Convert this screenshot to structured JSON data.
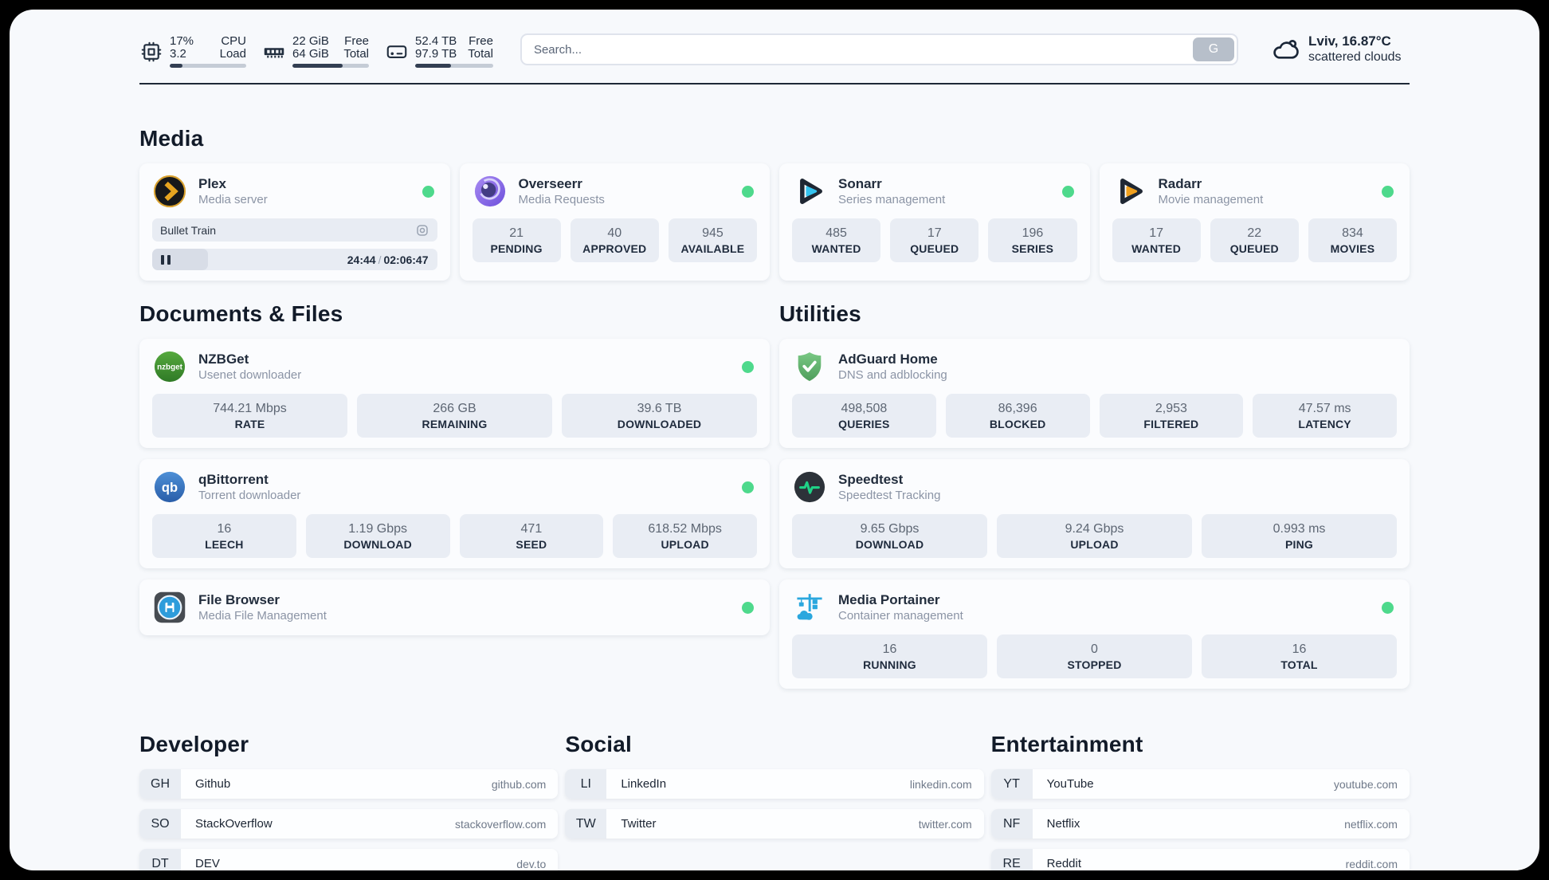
{
  "header": {
    "cpu": {
      "value1": "17%",
      "label1": "CPU",
      "value2": "3.2",
      "label2": "Load",
      "progress_pct": 17
    },
    "ram": {
      "value1": "22 GiB",
      "label1": "Free",
      "value2": "64 GiB",
      "label2": "Total",
      "progress_pct": 66
    },
    "disk": {
      "value1": "52.4 TB",
      "label1": "Free",
      "value2": "97.9 TB",
      "label2": "Total",
      "progress_pct": 46
    },
    "search": {
      "placeholder": "Search...",
      "button_label": "G"
    },
    "weather": {
      "location_temp": "Lviv, 16.87°C",
      "condition": "scattered clouds"
    }
  },
  "media": {
    "title": "Media",
    "plex": {
      "name": "Plex",
      "subtitle": "Media server",
      "online": true,
      "now_playing": "Bullet Train",
      "elapsed": "24:44",
      "separator": "/",
      "duration": "02:06:47",
      "progress_pct": 19.5
    },
    "overseerr": {
      "name": "Overseerr",
      "subtitle": "Media Requests",
      "online": true,
      "stats": [
        {
          "value": "21",
          "label": "PENDING"
        },
        {
          "value": "40",
          "label": "APPROVED"
        },
        {
          "value": "945",
          "label": "AVAILABLE"
        }
      ]
    },
    "sonarr": {
      "name": "Sonarr",
      "subtitle": "Series management",
      "online": true,
      "stats": [
        {
          "value": "485",
          "label": "WANTED"
        },
        {
          "value": "17",
          "label": "QUEUED"
        },
        {
          "value": "196",
          "label": "SERIES"
        }
      ]
    },
    "radarr": {
      "name": "Radarr",
      "subtitle": "Movie management",
      "online": true,
      "stats": [
        {
          "value": "17",
          "label": "WANTED"
        },
        {
          "value": "22",
          "label": "QUEUED"
        },
        {
          "value": "834",
          "label": "MOVIES"
        }
      ]
    }
  },
  "documents": {
    "title": "Documents & Files",
    "nzbget": {
      "name": "NZBGet",
      "subtitle": "Usenet downloader",
      "online": true,
      "stats": [
        {
          "value": "744.21 Mbps",
          "label": "RATE"
        },
        {
          "value": "266 GB",
          "label": "REMAINING"
        },
        {
          "value": "39.6 TB",
          "label": "DOWNLOADED"
        }
      ]
    },
    "qbittorrent": {
      "name": "qBittorrent",
      "subtitle": "Torrent downloader",
      "online": true,
      "stats": [
        {
          "value": "16",
          "label": "LEECH"
        },
        {
          "value": "1.19 Gbps",
          "label": "DOWNLOAD"
        },
        {
          "value": "471",
          "label": "SEED"
        },
        {
          "value": "618.52 Mbps",
          "label": "UPLOAD"
        }
      ]
    },
    "filebrowser": {
      "name": "File Browser",
      "subtitle": "Media File Management",
      "online": true
    }
  },
  "utilities": {
    "title": "Utilities",
    "adguard": {
      "name": "AdGuard Home",
      "subtitle": "DNS and adblocking",
      "stats": [
        {
          "value": "498,508",
          "label": "QUERIES"
        },
        {
          "value": "86,396",
          "label": "BLOCKED"
        },
        {
          "value": "2,953",
          "label": "FILTERED"
        },
        {
          "value": "47.57 ms",
          "label": "LATENCY"
        }
      ]
    },
    "speedtest": {
      "name": "Speedtest",
      "subtitle": "Speedtest Tracking",
      "stats": [
        {
          "value": "9.65 Gbps",
          "label": "DOWNLOAD"
        },
        {
          "value": "9.24 Gbps",
          "label": "UPLOAD"
        },
        {
          "value": "0.993 ms",
          "label": "PING"
        }
      ]
    },
    "portainer": {
      "name": "Media Portainer",
      "subtitle": "Container management",
      "online": true,
      "stats": [
        {
          "value": "16",
          "label": "RUNNING"
        },
        {
          "value": "0",
          "label": "STOPPED"
        },
        {
          "value": "16",
          "label": "TOTAL"
        }
      ]
    }
  },
  "bookmarks": {
    "developer": {
      "title": "Developer",
      "links": [
        {
          "abbr": "GH",
          "name": "Github",
          "url": "github.com"
        },
        {
          "abbr": "SO",
          "name": "StackOverflow",
          "url": "stackoverflow.com"
        },
        {
          "abbr": "DT",
          "name": "DEV",
          "url": "dev.to"
        }
      ]
    },
    "social": {
      "title": "Social",
      "links": [
        {
          "abbr": "LI",
          "name": "LinkedIn",
          "url": "linkedin.com"
        },
        {
          "abbr": "TW",
          "name": "Twitter",
          "url": "twitter.com"
        }
      ]
    },
    "entertainment": {
      "title": "Entertainment",
      "links": [
        {
          "abbr": "YT",
          "name": "YouTube",
          "url": "youtube.com"
        },
        {
          "abbr": "NF",
          "name": "Netflix",
          "url": "netflix.com"
        },
        {
          "abbr": "RE",
          "name": "Reddit",
          "url": "reddit.com"
        }
      ]
    }
  },
  "colors": {
    "status_online": "#4ed98c",
    "accent_dark": "#333f52"
  }
}
